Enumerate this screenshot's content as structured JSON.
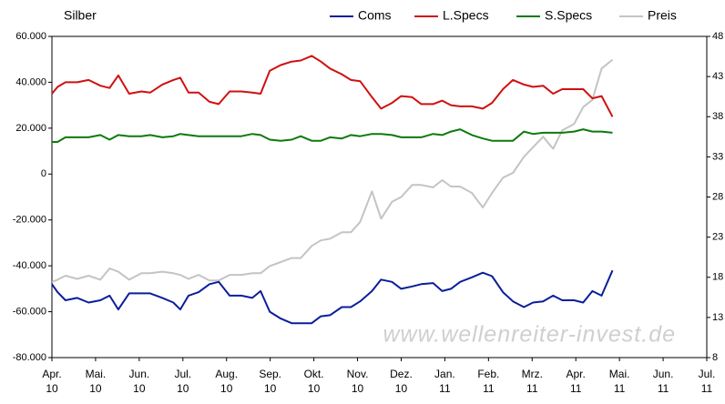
{
  "chart_data": {
    "type": "line",
    "title": "Silber",
    "watermark": "www.wellenreiter-invest.de",
    "x": [
      0,
      0.13,
      0.31,
      0.58,
      0.84,
      1.11,
      1.32,
      1.52,
      1.77,
      2.05,
      2.25,
      2.53,
      2.78,
      2.94,
      3.13,
      3.36,
      3.61,
      3.82,
      4.07,
      4.34,
      4.59,
      4.78,
      4.99,
      5.24,
      5.49,
      5.7,
      5.95,
      6.16,
      6.37,
      6.64,
      6.85,
      7.06,
      7.33,
      7.54,
      7.79,
      8.0,
      8.25,
      8.46,
      8.73,
      8.94,
      9.14,
      9.35,
      9.62,
      9.87,
      10.08,
      10.33,
      10.56,
      10.81,
      11.02,
      11.25,
      11.48,
      11.69,
      11.96,
      12.17,
      12.38,
      12.59,
      12.84
    ],
    "series": [
      {
        "name": "Coms",
        "color": "#0a1e9c",
        "axis": "y",
        "values": [
          -48000,
          -51500,
          -55000,
          -54000,
          -56000,
          -55000,
          -53000,
          -59000,
          -52000,
          -52000,
          -52000,
          -54000,
          -56000,
          -59000,
          -53000,
          -51500,
          -48000,
          -47000,
          -53000,
          -53000,
          -54000,
          -51000,
          -60000,
          -63000,
          -65000,
          -65000,
          -65000,
          -62000,
          -61500,
          -58000,
          -58000,
          -55500,
          -51000,
          -46000,
          -47000,
          -50000,
          -49000,
          -48000,
          -47500,
          -51000,
          -50000,
          -47000,
          -45000,
          -43000,
          -44500,
          -51500,
          -55500,
          -58000,
          -56000,
          -55500,
          -53000,
          -55000,
          -55000,
          -56000,
          -51000,
          -53000,
          -42000
        ]
      },
      {
        "name": "L.Specs",
        "color": "#d01010",
        "axis": "y",
        "values": [
          35000,
          38000,
          40000,
          40000,
          41000,
          38500,
          37500,
          43000,
          35000,
          36000,
          35500,
          39000,
          41000,
          42000,
          35500,
          35500,
          31500,
          30500,
          36000,
          36000,
          35500,
          35000,
          45000,
          47500,
          49000,
          49500,
          51500,
          49000,
          46000,
          43500,
          41000,
          40500,
          33500,
          28500,
          31000,
          34000,
          33500,
          30500,
          30500,
          32000,
          30000,
          29500,
          29500,
          28500,
          31000,
          37000,
          41000,
          39000,
          38000,
          38500,
          35000,
          37000,
          37000,
          37000,
          33000,
          34000,
          25000
        ]
      },
      {
        "name": "S.Specs",
        "color": "#0c7a0c",
        "axis": "y",
        "values": [
          14000,
          14000,
          16000,
          16000,
          16000,
          17000,
          15000,
          17000,
          16500,
          16500,
          17000,
          16000,
          16500,
          17500,
          17000,
          16500,
          16500,
          16500,
          16500,
          16500,
          17500,
          17000,
          15000,
          14500,
          15000,
          16500,
          14500,
          14500,
          16000,
          15500,
          17000,
          16500,
          17500,
          17500,
          17000,
          16000,
          16000,
          16000,
          17500,
          17000,
          18500,
          19500,
          17000,
          15500,
          14500,
          14500,
          14500,
          18500,
          17500,
          18000,
          18000,
          18000,
          18500,
          19500,
          18500,
          18500,
          18000
        ]
      },
      {
        "name": "Preis",
        "color": "#c4c4c4",
        "axis": "y2",
        "values": [
          17.4,
          17.7,
          18.2,
          17.8,
          18.2,
          17.7,
          19.1,
          18.7,
          17.7,
          18.5,
          18.5,
          18.7,
          18.5,
          18.3,
          17.8,
          18.3,
          17.6,
          17.6,
          18.3,
          18.3,
          18.5,
          18.5,
          19.4,
          19.9,
          20.4,
          20.4,
          21.9,
          22.6,
          22.8,
          23.6,
          23.6,
          24.9,
          28.7,
          25.3,
          27.4,
          28.0,
          29.5,
          29.5,
          29.2,
          30.1,
          29.3,
          29.3,
          28.5,
          26.7,
          28.5,
          30.4,
          31.0,
          33.0,
          34.2,
          35.5,
          34.0,
          36.3,
          37.1,
          39.2,
          40.1,
          44.0,
          45.1
        ]
      }
    ],
    "xlim": [
      0,
      15
    ],
    "xticks": [
      {
        "value": 0,
        "label": "Apr.\n10"
      },
      {
        "value": 1,
        "label": "Mai.\n10"
      },
      {
        "value": 2,
        "label": "Jun.\n10"
      },
      {
        "value": 3,
        "label": "Jul.\n10"
      },
      {
        "value": 4,
        "label": "Aug.\n10"
      },
      {
        "value": 5,
        "label": "Sep.\n10"
      },
      {
        "value": 6,
        "label": "Okt.\n10"
      },
      {
        "value": 7,
        "label": "Nov.\n10"
      },
      {
        "value": 8,
        "label": "Dez.\n10"
      },
      {
        "value": 9,
        "label": "Jan.\n11"
      },
      {
        "value": 10,
        "label": "Feb.\n11"
      },
      {
        "value": 11,
        "label": "Mrz.\n11"
      },
      {
        "value": 12,
        "label": "Apr.\n11"
      },
      {
        "value": 13,
        "label": "Mai.\n11"
      },
      {
        "value": 14,
        "label": "Jun.\n11"
      },
      {
        "value": 15,
        "label": "Jul.\n11"
      }
    ],
    "ylim": [
      -80000,
      60000
    ],
    "yticks": [
      {
        "value": -80000,
        "label": "-80.000"
      },
      {
        "value": -60000,
        "label": "-60.000"
      },
      {
        "value": -40000,
        "label": "-40.000"
      },
      {
        "value": -20000,
        "label": "-20.000"
      },
      0,
      {
        "value": 20000,
        "label": "20.000"
      },
      {
        "value": 40000,
        "label": "40.000"
      },
      {
        "value": 60000,
        "label": "60.000"
      }
    ],
    "y2lim": [
      8,
      48
    ],
    "y2ticks": [
      8,
      13,
      18,
      23,
      28,
      33,
      38,
      43,
      48
    ],
    "grid": false,
    "legend": "top"
  }
}
